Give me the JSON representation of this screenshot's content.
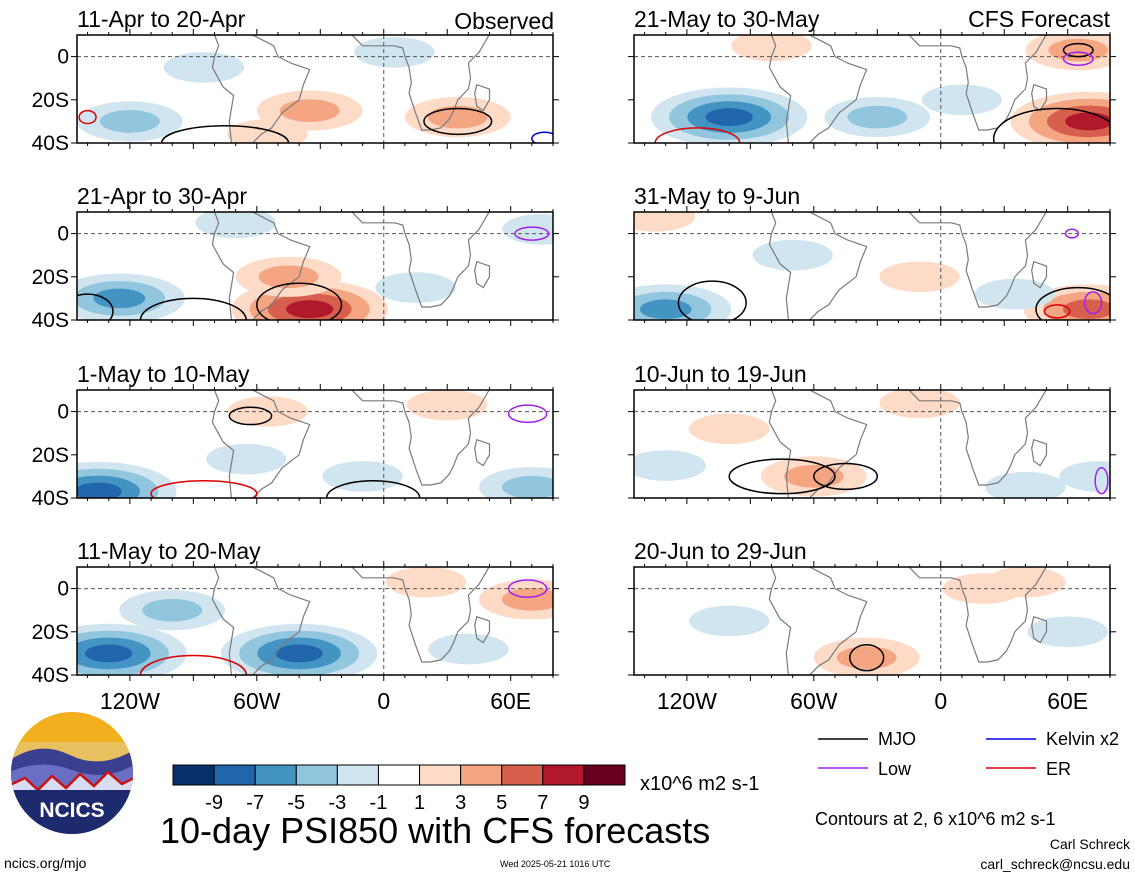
{
  "chart_data": {
    "type": "heatmap",
    "title": "10-day PSI850 with CFS forecasts",
    "variable": "PSI850 anomaly",
    "units": "x10^6 m2 s-1",
    "lon_range": [
      -145,
      80
    ],
    "lat_range": [
      -40,
      10
    ],
    "y_ticks": [
      {
        "value": 0,
        "label": "0"
      },
      {
        "value": -20,
        "label": "20S"
      },
      {
        "value": -40,
        "label": "40S"
      }
    ],
    "x_ticks": [
      {
        "value": -120,
        "label": "120W"
      },
      {
        "value": -60,
        "label": "60W"
      },
      {
        "value": 0,
        "label": "0"
      },
      {
        "value": 60,
        "label": "60E"
      }
    ],
    "dashed_reference_lines": {
      "lat": 0,
      "lon": 0
    },
    "column_labels": {
      "left": "Observed",
      "right": "CFS Forecast"
    },
    "colorbar": {
      "levels": [
        -9,
        -7,
        -5,
        -3,
        -1,
        1,
        3,
        5,
        7,
        9
      ],
      "labels": [
        "-9",
        "-7",
        "-5",
        "-3",
        "-1",
        "1",
        "3",
        "5",
        "7",
        "9"
      ],
      "colors": [
        "#08306b",
        "#2166ac",
        "#4393c3",
        "#92c5de",
        "#d1e5f0",
        "#ffffff",
        "#fddbc7",
        "#f4a582",
        "#d6604d",
        "#b2182b",
        "#67001f"
      ]
    },
    "contour_note": "Contours at 2, 6 x10^6 m2 s-1",
    "legend": [
      {
        "name": "MJO",
        "color": "#000000"
      },
      {
        "name": "Kelvin x2",
        "color": "#0000dd"
      },
      {
        "name": "Low",
        "color": "#a020f0"
      },
      {
        "name": "ER",
        "color": "#dd0000"
      }
    ],
    "panels": [
      {
        "id": "p1",
        "title": "11-Apr to 20-Apr",
        "column": "left",
        "row": 0,
        "anoms": [
          {
            "lon": -120,
            "lat": -30,
            "v": -3
          },
          {
            "lon": -85,
            "lat": -5,
            "v": -1
          },
          {
            "lon": -35,
            "lat": -25,
            "v": 3
          },
          {
            "lon": 35,
            "lat": -28,
            "v": 3
          },
          {
            "lon": -55,
            "lat": -36,
            "v": 1
          },
          {
            "lon": 5,
            "lat": 2,
            "v": -1
          }
        ],
        "contours": [
          {
            "type": "MJO",
            "lon": -75,
            "lat": -40,
            "rx": 30,
            "ry": 8
          },
          {
            "type": "MJO",
            "lon": 35,
            "lat": -30,
            "rx": 16,
            "ry": 6
          },
          {
            "type": "ER",
            "lon": -140,
            "lat": -28,
            "rx": 4,
            "ry": 3
          },
          {
            "type": "Kelvin x2",
            "lon": 76,
            "lat": -38,
            "rx": 6,
            "ry": 3
          }
        ]
      },
      {
        "id": "p2",
        "title": "21-Apr to 30-Apr",
        "column": "left",
        "row": 1,
        "anoms": [
          {
            "lon": -125,
            "lat": -30,
            "v": -5
          },
          {
            "lon": -35,
            "lat": -35,
            "v": 7
          },
          {
            "lon": -45,
            "lat": -20,
            "v": 3
          },
          {
            "lon": 15,
            "lat": -25,
            "v": -1
          },
          {
            "lon": -70,
            "lat": 5,
            "v": -1
          },
          {
            "lon": 75,
            "lat": 2,
            "v": -1
          }
        ],
        "contours": [
          {
            "type": "MJO",
            "lon": -140,
            "lat": -36,
            "rx": 12,
            "ry": 8
          },
          {
            "type": "MJO",
            "lon": -90,
            "lat": -40,
            "rx": 25,
            "ry": 10
          },
          {
            "type": "MJO",
            "lon": -40,
            "lat": -33,
            "rx": 20,
            "ry": 10
          },
          {
            "type": "Low",
            "lon": 70,
            "lat": 0,
            "rx": 8,
            "ry": 3
          }
        ]
      },
      {
        "id": "p3",
        "title": "1-May to 10-May",
        "column": "left",
        "row": 2,
        "anoms": [
          {
            "lon": -135,
            "lat": -37,
            "v": -7
          },
          {
            "lon": -55,
            "lat": 0,
            "v": 1
          },
          {
            "lon": 30,
            "lat": 3,
            "v": 1
          },
          {
            "lon": -65,
            "lat": -22,
            "v": -1
          },
          {
            "lon": 70,
            "lat": -35,
            "v": -3
          },
          {
            "lon": -10,
            "lat": -30,
            "v": -1
          }
        ],
        "contours": [
          {
            "type": "MJO",
            "lon": -63,
            "lat": -2,
            "rx": 10,
            "ry": 4
          },
          {
            "type": "MJO",
            "lon": -5,
            "lat": -40,
            "rx": 22,
            "ry": 8
          },
          {
            "type": "ER",
            "lon": -85,
            "lat": -38,
            "rx": 25,
            "ry": 6
          },
          {
            "type": "Low",
            "lon": 68,
            "lat": -1,
            "rx": 9,
            "ry": 4
          }
        ]
      },
      {
        "id": "p4",
        "title": "11-May to 20-May",
        "column": "left",
        "row": 3,
        "anoms": [
          {
            "lon": -130,
            "lat": -30,
            "v": -7
          },
          {
            "lon": -40,
            "lat": -30,
            "v": -7
          },
          {
            "lon": 20,
            "lat": 3,
            "v": 1
          },
          {
            "lon": -100,
            "lat": -10,
            "v": -3
          },
          {
            "lon": 70,
            "lat": -5,
            "v": 3
          },
          {
            "lon": 40,
            "lat": -28,
            "v": -1
          }
        ],
        "contours": [
          {
            "type": "ER",
            "lon": -90,
            "lat": -40,
            "rx": 25,
            "ry": 9
          },
          {
            "type": "Low",
            "lon": 68,
            "lat": 0,
            "rx": 9,
            "ry": 4
          }
        ]
      },
      {
        "id": "p5",
        "title": "21-May to 30-May",
        "column": "right",
        "row": 0,
        "anoms": [
          {
            "lon": -100,
            "lat": -28,
            "v": -7
          },
          {
            "lon": -30,
            "lat": -28,
            "v": -3
          },
          {
            "lon": -80,
            "lat": 5,
            "v": 1
          },
          {
            "lon": 70,
            "lat": -30,
            "v": 7
          },
          {
            "lon": 65,
            "lat": 3,
            "v": 3
          },
          {
            "lon": 10,
            "lat": -20,
            "v": -1
          }
        ],
        "contours": [
          {
            "type": "MJO",
            "lon": 65,
            "lat": 3,
            "rx": 7,
            "ry": 3
          },
          {
            "type": "Low",
            "lon": 65,
            "lat": -1,
            "rx": 7,
            "ry": 3
          },
          {
            "type": "MJO",
            "lon": 55,
            "lat": -38,
            "rx": 30,
            "ry": 14
          },
          {
            "type": "ER",
            "lon": -115,
            "lat": -40,
            "rx": 20,
            "ry": 7
          }
        ]
      },
      {
        "id": "p6",
        "title": "31-May to 9-Jun",
        "column": "right",
        "row": 1,
        "anoms": [
          {
            "lon": -130,
            "lat": -35,
            "v": -5
          },
          {
            "lon": 70,
            "lat": -35,
            "v": 5
          },
          {
            "lon": -135,
            "lat": 8,
            "v": 1
          },
          {
            "lon": -70,
            "lat": -10,
            "v": -1
          },
          {
            "lon": -10,
            "lat": -20,
            "v": 1
          },
          {
            "lon": 35,
            "lat": -28,
            "v": -1
          }
        ],
        "contours": [
          {
            "type": "MJO",
            "lon": -108,
            "lat": -32,
            "rx": 16,
            "ry": 10
          },
          {
            "type": "MJO",
            "lon": 65,
            "lat": -35,
            "rx": 20,
            "ry": 10
          },
          {
            "type": "Low",
            "lon": 72,
            "lat": -32,
            "rx": 4,
            "ry": 5
          },
          {
            "type": "ER",
            "lon": 55,
            "lat": -36,
            "rx": 6,
            "ry": 3
          },
          {
            "type": "Low",
            "lon": 62,
            "lat": 0,
            "rx": 3,
            "ry": 2
          }
        ]
      },
      {
        "id": "p7",
        "title": "10-Jun to 19-Jun",
        "column": "right",
        "row": 2,
        "anoms": [
          {
            "lon": -60,
            "lat": -30,
            "v": 3
          },
          {
            "lon": -100,
            "lat": -8,
            "v": 1
          },
          {
            "lon": 40,
            "lat": -35,
            "v": -1
          },
          {
            "lon": -10,
            "lat": 4,
            "v": 1
          },
          {
            "lon": 75,
            "lat": -30,
            "v": -1
          },
          {
            "lon": -130,
            "lat": -25,
            "v": -1
          }
        ],
        "contours": [
          {
            "type": "MJO",
            "lon": -75,
            "lat": -30,
            "rx": 25,
            "ry": 8
          },
          {
            "type": "MJO",
            "lon": -45,
            "lat": -30,
            "rx": 15,
            "ry": 6
          },
          {
            "type": "Low",
            "lon": 76,
            "lat": -32,
            "rx": 3,
            "ry": 6
          }
        ]
      },
      {
        "id": "p8",
        "title": "20-Jun to 29-Jun",
        "column": "right",
        "row": 3,
        "anoms": [
          {
            "lon": -35,
            "lat": -32,
            "v": 3
          },
          {
            "lon": -100,
            "lat": -15,
            "v": -1
          },
          {
            "lon": 40,
            "lat": 3,
            "v": 1
          },
          {
            "lon": 60,
            "lat": -20,
            "v": -1
          },
          {
            "lon": 20,
            "lat": 0,
            "v": 1
          }
        ],
        "contours": [
          {
            "type": "MJO",
            "lon": -35,
            "lat": -32,
            "rx": 8,
            "ry": 6
          }
        ]
      }
    ]
  },
  "footer": {
    "logo_text": "NCICS",
    "url": "ncics.org/mjo",
    "timestamp": "Wed 2025-05-21 1016 UTC",
    "author": "Carl Schreck",
    "email": "carl_schreck@ncsu.edu"
  },
  "colors": {
    "grid": "#555555",
    "coast": "#7a7a7a"
  }
}
